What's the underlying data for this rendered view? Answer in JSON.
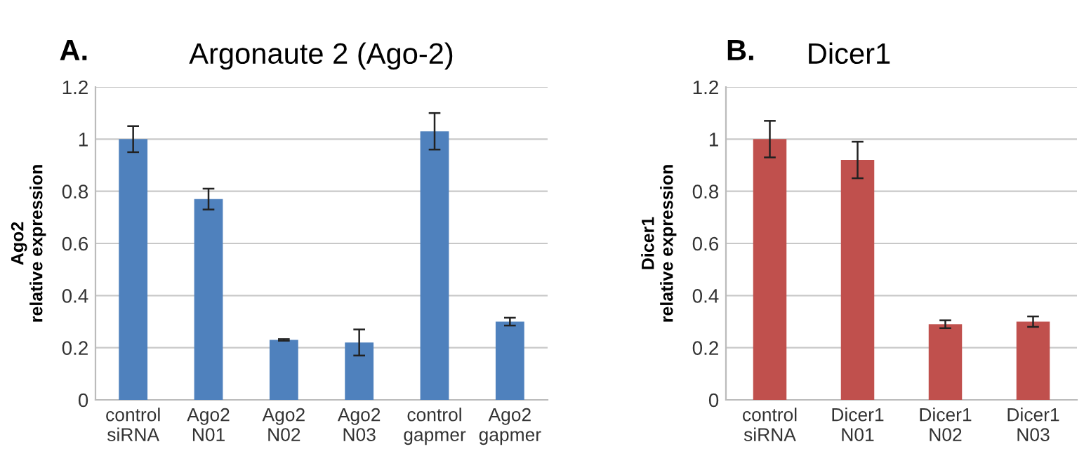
{
  "chart_data": [
    {
      "type": "bar",
      "title": "Argonaute 2 (Ago-2)",
      "annotations": [
        "A."
      ],
      "ylabel": "Ago2\nrelative expression",
      "categories": [
        "control\nsiRNA",
        "Ago2\nN01",
        "Ago2\nN02",
        "Ago2\nN03",
        "control\ngapmer",
        "Ago2\ngapmer"
      ],
      "series": [
        {
          "color": "#4f81bd",
          "values": [
            1.0,
            0.77,
            0.23,
            0.22,
            1.03,
            0.3
          ],
          "errors": [
            0.05,
            0.04,
            0.003,
            0.05,
            0.07,
            0.015
          ]
        }
      ],
      "ylim": [
        0,
        1.2
      ],
      "yticks": [
        0,
        0.2,
        0.4,
        0.6,
        0.8,
        1,
        1.2
      ],
      "grid": "y",
      "legend": false
    },
    {
      "type": "bar",
      "title": "Dicer1",
      "annotations": [
        "B."
      ],
      "ylabel": "Dicer1\nrelative expression",
      "categories": [
        "control\nsiRNA",
        "Dicer1\nN01",
        "Dicer1\nN02",
        "Dicer1\nN03"
      ],
      "series": [
        {
          "color": "#c0504d",
          "values": [
            1.0,
            0.92,
            0.29,
            0.3
          ],
          "errors": [
            0.07,
            0.07,
            0.015,
            0.02
          ]
        }
      ],
      "ylim": [
        0,
        1.2
      ],
      "yticks": [
        0,
        0.2,
        0.4,
        0.6,
        0.8,
        1,
        1.2
      ],
      "grid": "y",
      "legend": false
    }
  ]
}
